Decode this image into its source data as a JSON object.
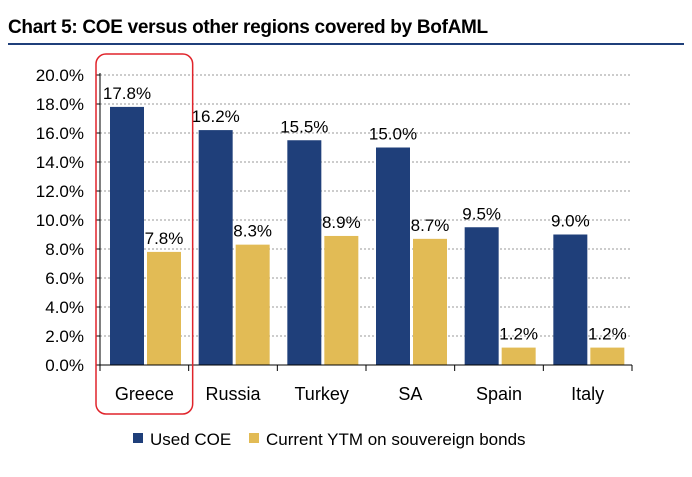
{
  "chart_data": {
    "type": "bar",
    "title": "Chart 5: COE versus other regions covered by BofAML",
    "xlabel": "",
    "ylabel": "",
    "categories": [
      "Greece",
      "Russia",
      "Turkey",
      "SA",
      "Spain",
      "Italy"
    ],
    "series": [
      {
        "name": "Used COE",
        "values": [
          17.8,
          16.2,
          15.5,
          15.0,
          9.5,
          9.0
        ],
        "labels": [
          "17.8%",
          "16.2%",
          "15.5%",
          "15.0%",
          "9.5%",
          "9.0%"
        ],
        "color": "#1f3f7a"
      },
      {
        "name": "Current YTM on souvereign bonds",
        "values": [
          7.8,
          8.3,
          8.9,
          8.7,
          1.2,
          1.2
        ],
        "labels": [
          "7.8%",
          "8.3%",
          "8.9%",
          "8.7%",
          "1.2%",
          "1.2%"
        ],
        "color": "#e2bb55"
      }
    ],
    "ylim": [
      0,
      20
    ],
    "yticks": [
      0,
      2,
      4,
      6,
      8,
      10,
      12,
      14,
      16,
      18,
      20
    ],
    "ytick_labels": [
      "0.0%",
      "2.0%",
      "4.0%",
      "6.0%",
      "8.0%",
      "10.0%",
      "12.0%",
      "14.0%",
      "16.0%",
      "18.0%",
      "20.0%"
    ],
    "grid": true,
    "legend_position": "bottom",
    "highlight": {
      "category": "Greece",
      "color": "#e0242b"
    }
  }
}
